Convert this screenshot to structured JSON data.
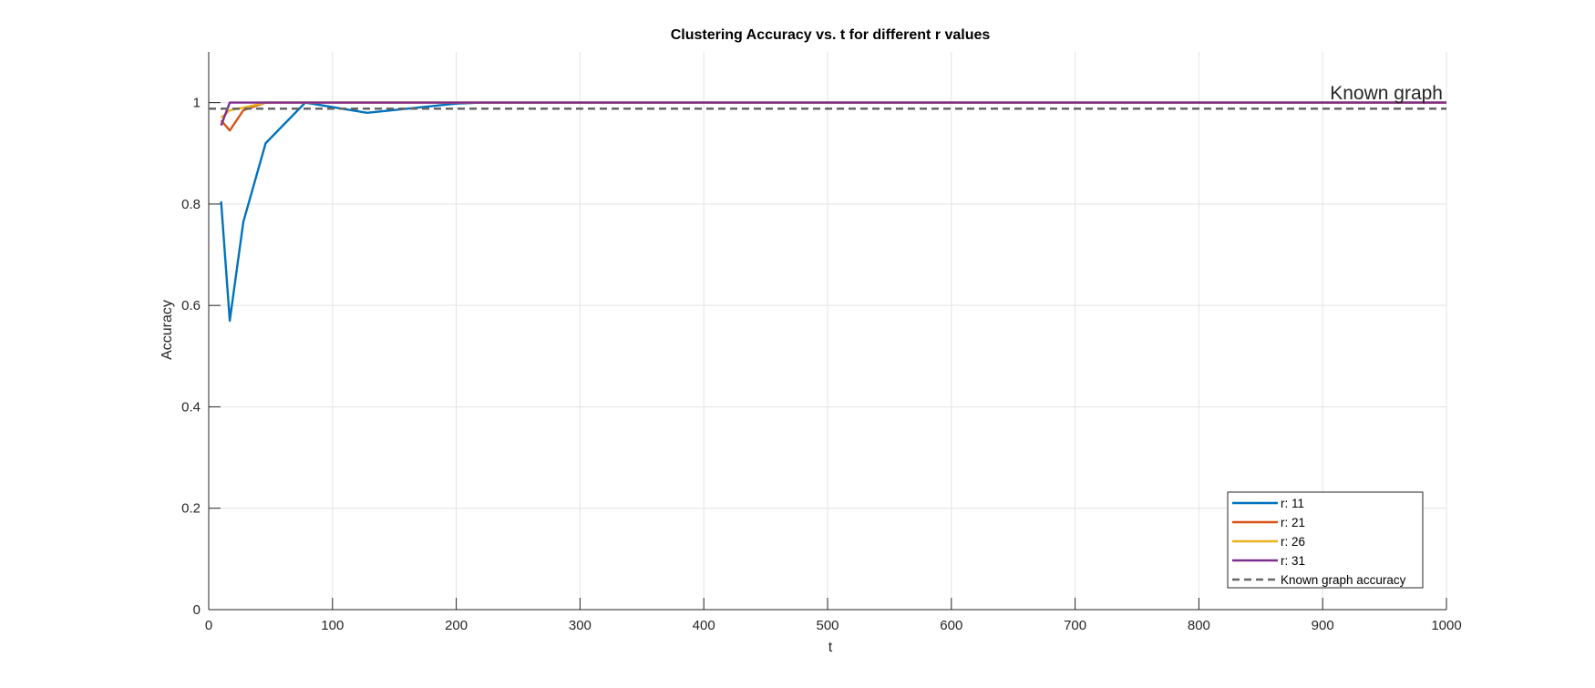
{
  "chart_data": {
    "type": "line",
    "title": "Clustering Accuracy vs. t for different r values",
    "xlabel": "t",
    "ylabel": "Accuracy",
    "xlim": [
      0,
      1000
    ],
    "ylim": [
      0,
      1.1
    ],
    "xticks": [
      0,
      100,
      200,
      300,
      400,
      500,
      600,
      700,
      800,
      900,
      1000
    ],
    "xtick_labels": [
      "0",
      "100",
      "200",
      "300",
      "400",
      "500",
      "600",
      "700",
      "800",
      "900",
      "1000"
    ],
    "yticks": [
      0,
      0.2,
      0.4,
      0.6,
      0.8,
      1
    ],
    "ytick_labels": [
      "0",
      "0.2",
      "0.4",
      "0.6",
      "0.8",
      "1"
    ],
    "grid": true,
    "legend_position": "bottom-right",
    "series": [
      {
        "name": "r: 11",
        "color": "#0072BD",
        "style": "solid",
        "x": [
          10,
          17,
          28,
          46,
          78,
          128,
          200,
          220,
          1000
        ],
        "y": [
          0.805,
          0.57,
          0.765,
          0.92,
          1.0,
          0.98,
          0.998,
          1.0,
          1.0
        ]
      },
      {
        "name": "r: 21",
        "color": "#D95319",
        "style": "solid",
        "x": [
          10,
          17,
          28,
          46,
          78,
          1000
        ],
        "y": [
          0.965,
          0.945,
          0.985,
          1.0,
          1.0,
          1.0
        ]
      },
      {
        "name": "r: 26",
        "color": "#EDB120",
        "style": "solid",
        "x": [
          10,
          17,
          28,
          46,
          78,
          1000
        ],
        "y": [
          0.97,
          0.985,
          0.99,
          1.0,
          1.0,
          1.0
        ]
      },
      {
        "name": "r: 31",
        "color": "#7E2F8E",
        "style": "solid",
        "x": [
          10,
          17,
          28,
          1000
        ],
        "y": [
          0.955,
          1.0,
          1.0,
          1.0
        ]
      },
      {
        "name": "Known graph accuracy",
        "color": "#666666",
        "style": "dashed",
        "x": [
          0,
          1000
        ],
        "y": [
          0.988,
          0.988
        ]
      }
    ],
    "annotations": [
      {
        "text": "Known graph",
        "x": 995,
        "y": 1.01
      }
    ]
  }
}
